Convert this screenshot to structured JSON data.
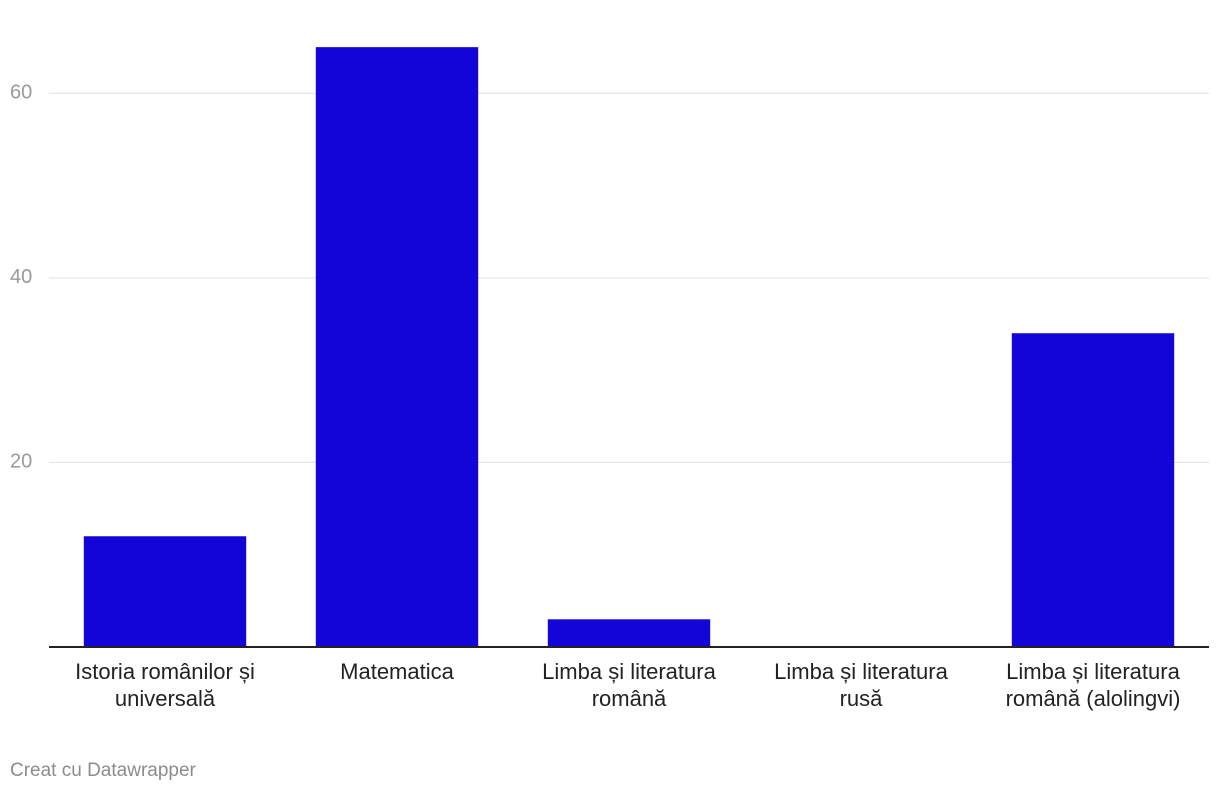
{
  "chart_data": {
    "type": "bar",
    "categories": [
      "Istoria românilor și universală",
      "Matematica",
      "Limba și literatura română",
      "Limba și literatura rusă",
      "Limba și literatura română (alolingvi)"
    ],
    "values": [
      12,
      65,
      3,
      0,
      34
    ],
    "color": "#1304d8",
    "ylim": [
      0,
      70
    ],
    "yticks": [
      20,
      40,
      60
    ],
    "grid": true,
    "credit": "Creat cu Datawrapper"
  }
}
